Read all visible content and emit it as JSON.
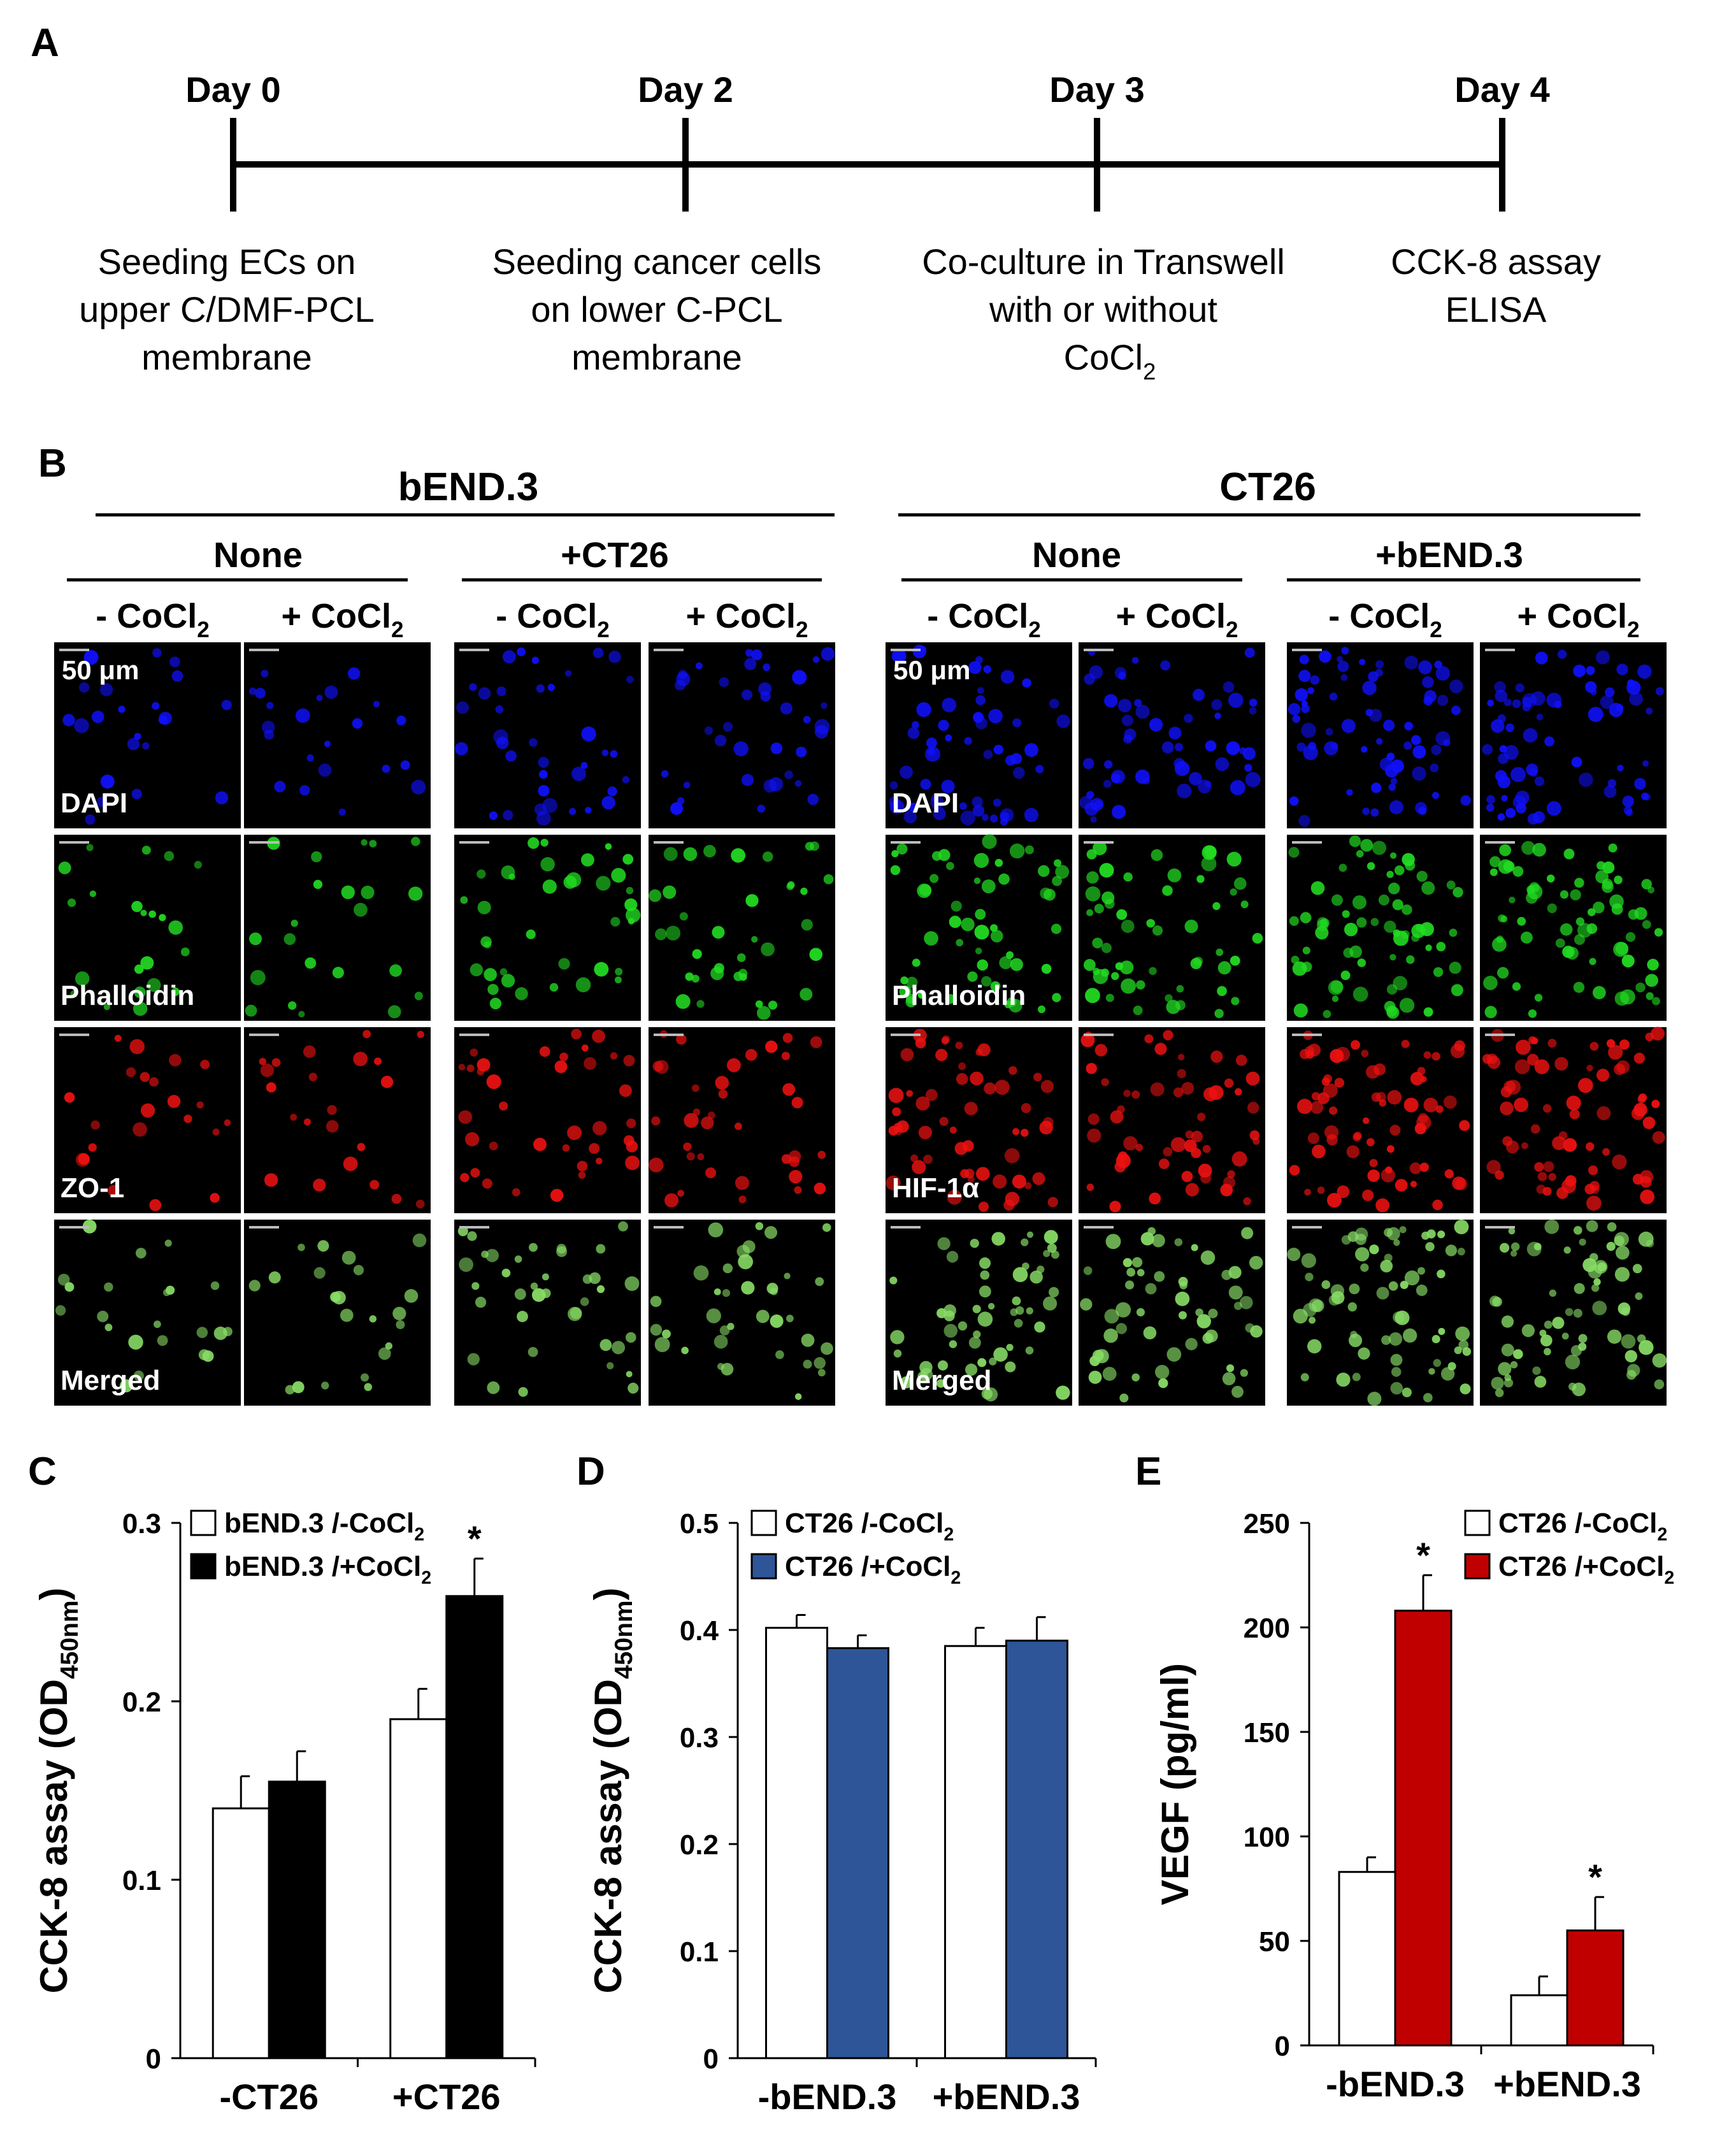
{
  "figure": {
    "panel_letters": [
      "A",
      "B",
      "C",
      "D",
      "E"
    ]
  },
  "timeline": {
    "days": [
      {
        "label": "Day 0",
        "desc": [
          "Seeding ECs on",
          "upper C/DMF-PCL",
          "membrane"
        ]
      },
      {
        "label": "Day 2",
        "desc": [
          "Seeding cancer cells",
          "on lower C-PCL",
          "membrane"
        ]
      },
      {
        "label": "Day 3",
        "desc": [
          "Co-culture in Transwell",
          "with or without",
          "CoCl"
        ]
      },
      {
        "label": "Day 4",
        "desc": [
          "CCK-8 assay",
          "ELISA"
        ]
      }
    ],
    "subscript": "2"
  },
  "microscopy": {
    "groups": [
      {
        "title": "bEND.3",
        "subgroups": [
          "None",
          "+CT26"
        ],
        "stains": [
          "DAPI",
          "Phalloidin",
          "ZO-1",
          "Merged"
        ],
        "scale_bar": "50 μm"
      },
      {
        "title": "CT26",
        "subgroups": [
          "None",
          "+bEND.3"
        ],
        "stains": [
          "DAPI",
          "Phalloidin",
          "HIF-1α",
          "Merged"
        ],
        "scale_bar": "50 μm"
      }
    ],
    "conditions": [
      "- CoCl",
      "+ CoCl"
    ],
    "colors": {
      "DAPI": "#1010ff",
      "Phalloidin": "#22dd22",
      "ZO-1": "#ee1111",
      "HIF-1α": "#ee1111",
      "Merged": "#88dd66"
    }
  },
  "chart_data": [
    {
      "type": "bar",
      "panel": "C",
      "categories": [
        "-CT26",
        "+CT26"
      ],
      "series": [
        {
          "name": "bEND.3 /-CoCl",
          "values": [
            0.14,
            0.19
          ],
          "errors": [
            0.018,
            0.017
          ],
          "color": "#ffffff"
        },
        {
          "name": "bEND.3 /+CoCl",
          "values": [
            0.155,
            0.259
          ],
          "errors": [
            0.017,
            0.021
          ],
          "color": "#000000"
        }
      ],
      "significance": [
        [
          false,
          false
        ],
        [
          false,
          true
        ]
      ],
      "ylabel": "CCK-8 assay (OD",
      "ylabel_sub": "450nm",
      "ylim": [
        0,
        0.3
      ],
      "yticks": [
        "0",
        "0.1",
        "0.2",
        "0.3"
      ]
    },
    {
      "type": "bar",
      "panel": "D",
      "categories": [
        "-bEND.3",
        "+bEND.3"
      ],
      "series": [
        {
          "name": "CT26 /-CoCl",
          "values": [
            0.402,
            0.385
          ],
          "errors": [
            0.012,
            0.017
          ],
          "color": "#ffffff"
        },
        {
          "name": "CT26 /+CoCl",
          "values": [
            0.383,
            0.39
          ],
          "errors": [
            0.012,
            0.022
          ],
          "color": "#2e5597"
        }
      ],
      "significance": [
        [
          false,
          false
        ],
        [
          false,
          false
        ]
      ],
      "ylabel": "CCK-8 assay (OD",
      "ylabel_sub": "450nm",
      "ylim": [
        0,
        0.5
      ],
      "yticks": [
        "0",
        "0.1",
        "0.2",
        "0.3",
        "0.4",
        "0.5"
      ]
    },
    {
      "type": "bar",
      "panel": "E",
      "categories": [
        "-bEND.3",
        "+bEND.3"
      ],
      "series": [
        {
          "name": "CT26 /-CoCl",
          "values": [
            83,
            24
          ],
          "errors": [
            7,
            9
          ],
          "color": "#ffffff"
        },
        {
          "name": "CT26 /+CoCl",
          "values": [
            208,
            55
          ],
          "errors": [
            17,
            16
          ],
          "color": "#c00000"
        }
      ],
      "significance": [
        [
          false,
          false
        ],
        [
          true,
          true
        ]
      ],
      "ylabel": "VEGF  (pg/ml)",
      "ylabel_sub": "",
      "ylim": [
        0,
        250
      ],
      "yticks": [
        "0",
        "50",
        "100",
        "150",
        "200",
        "250"
      ]
    }
  ],
  "legend_subscript": "2",
  "significance_marker": "*"
}
